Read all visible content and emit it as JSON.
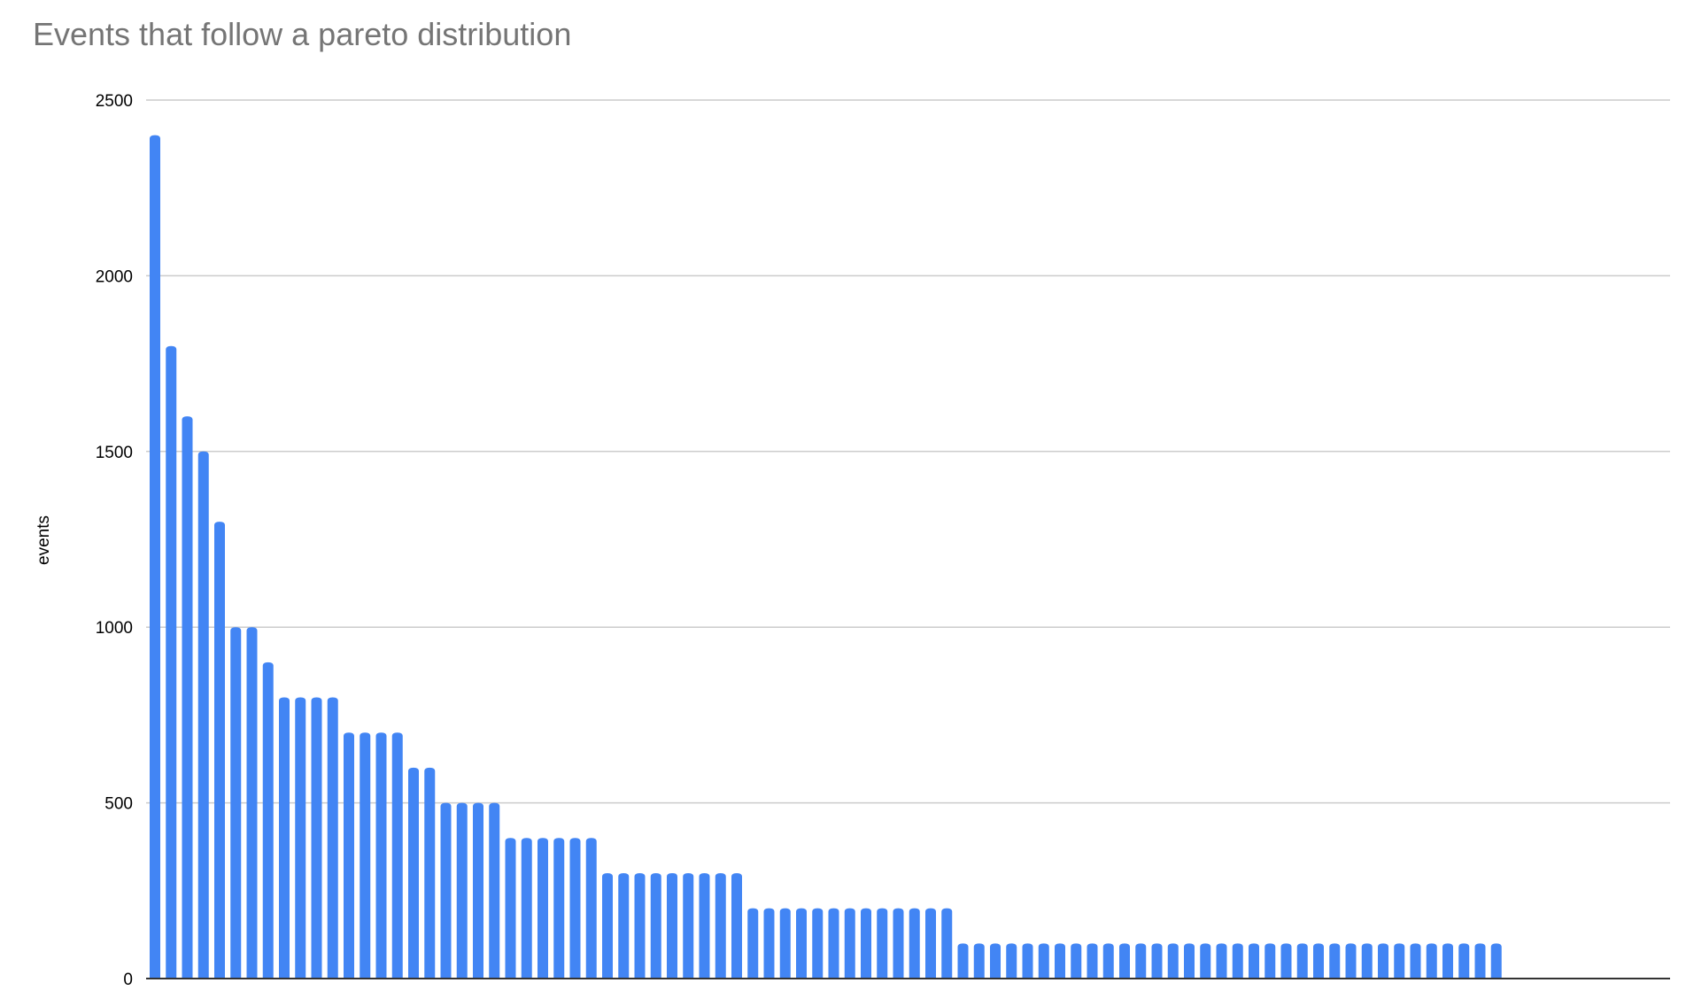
{
  "chart_data": {
    "type": "bar",
    "title": "Events that follow a pareto distribution",
    "xlabel": "",
    "ylabel": "events",
    "ylim": [
      0,
      2500
    ],
    "yticks": [
      0,
      500,
      1000,
      1500,
      2000,
      2500
    ],
    "grid": true,
    "legend": "none",
    "bar_color": "#4285f4",
    "values": [
      2400,
      1800,
      1600,
      1500,
      1300,
      1000,
      1000,
      900,
      800,
      800,
      800,
      800,
      700,
      700,
      700,
      700,
      600,
      600,
      500,
      500,
      500,
      500,
      400,
      400,
      400,
      400,
      400,
      400,
      300,
      300,
      300,
      300,
      300,
      300,
      300,
      300,
      300,
      200,
      200,
      200,
      200,
      200,
      200,
      200,
      200,
      200,
      200,
      200,
      200,
      200,
      100,
      100,
      100,
      100,
      100,
      100,
      100,
      100,
      100,
      100,
      100,
      100,
      100,
      100,
      100,
      100,
      100,
      100,
      100,
      100,
      100,
      100,
      100,
      100,
      100,
      100,
      100,
      100,
      100,
      100,
      100,
      100,
      100,
      100
    ]
  }
}
